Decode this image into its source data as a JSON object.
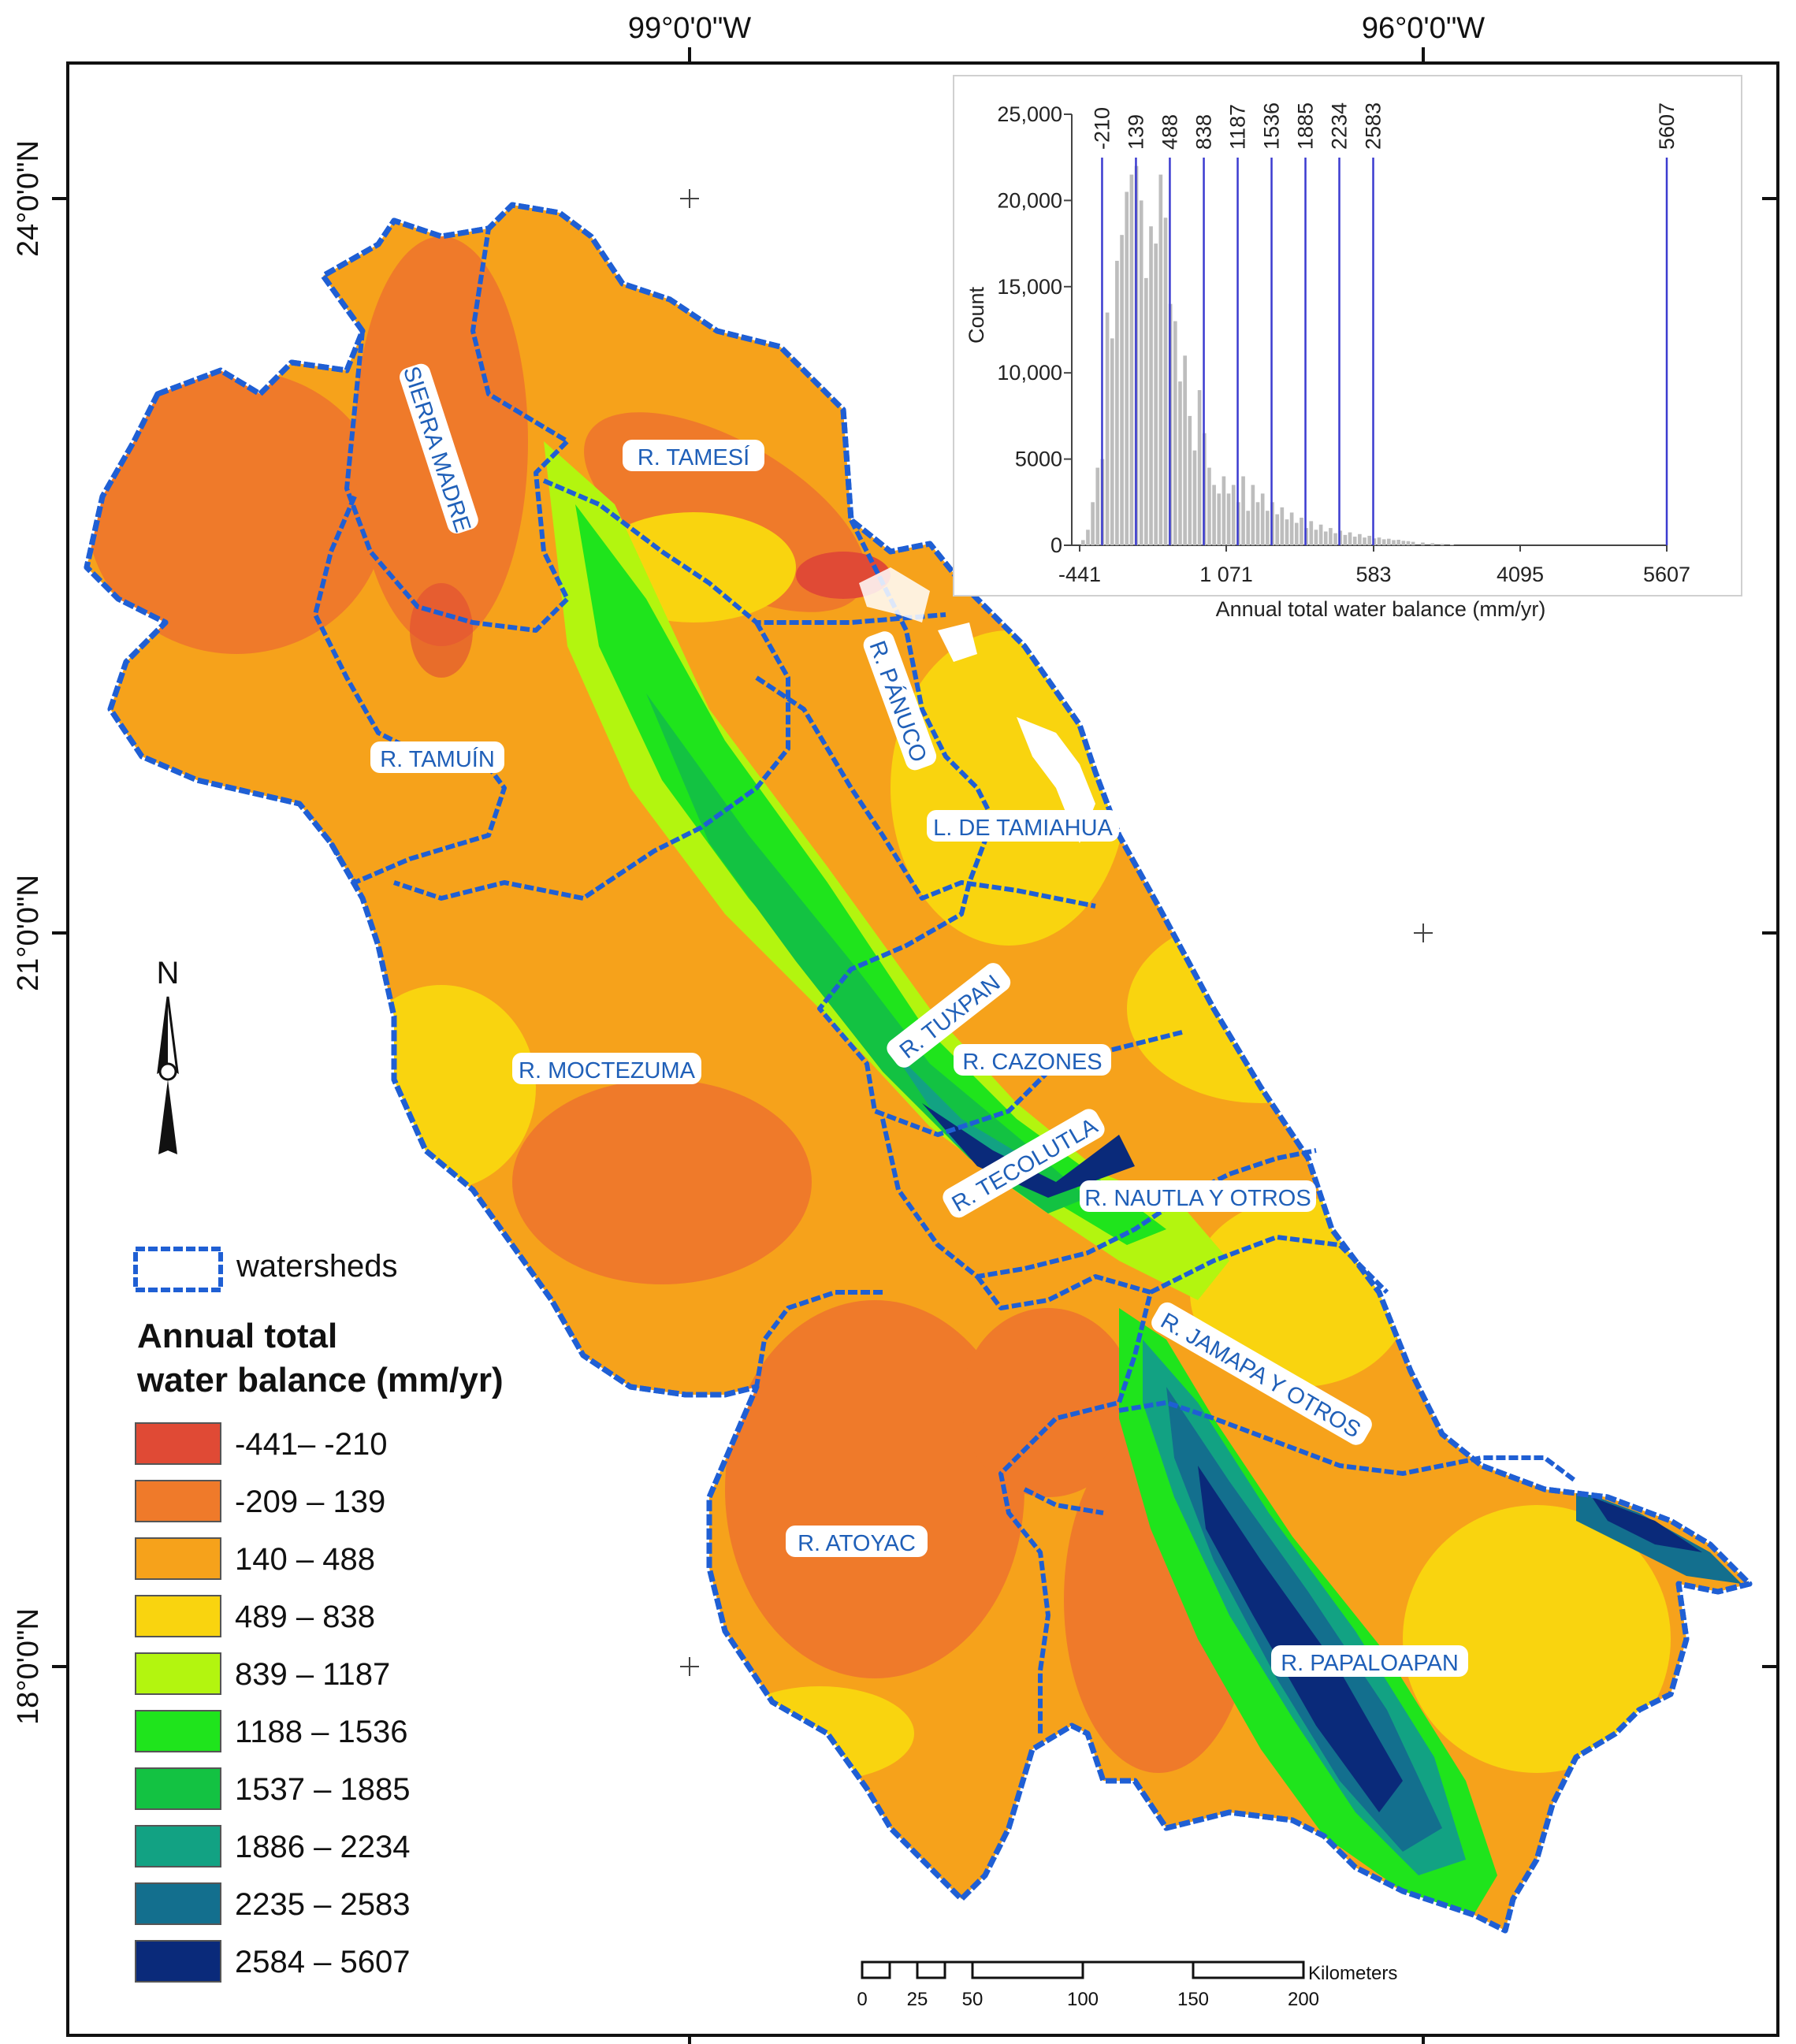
{
  "graticule": {
    "top": [
      "99°0'0\"W",
      "96°0'0\"W"
    ],
    "left": [
      "24°0'0\"N",
      "21°0'0\"N",
      "18°0'0\"N"
    ]
  },
  "watersheds": [
    "SIERRA MADRE",
    "R. TAMESÍ",
    "R. PÁNUCO",
    "R. TAMUÍN",
    "L. DE TAMIAHUA",
    "R. TUXPAN",
    "R. CAZONES",
    "R. MOCTEZUMA",
    "R. TECOLUTLA",
    "R. NAUTLA Y OTROS",
    "R. JAMAPA Y OTROS",
    "R. ATOYAC",
    "R. PAPALOAPAN"
  ],
  "north_label": "N",
  "legend": {
    "watersheds_label": "watersheds",
    "title_line1": "Annual total",
    "title_line2": "water balance (mm/yr)",
    "classes": [
      {
        "label": "-441– -210",
        "color": "#e04a35"
      },
      {
        "label": "-209 – 139",
        "color": "#ef7a2a"
      },
      {
        "label": "140 – 488",
        "color": "#f6a21b"
      },
      {
        "label": "489 – 838",
        "color": "#f9d40f"
      },
      {
        "label": "839 – 1187",
        "color": "#b3f50f"
      },
      {
        "label": "1188 – 1536",
        "color": "#1fe41c"
      },
      {
        "label": "1537 – 1885",
        "color": "#13c242"
      },
      {
        "label": "1886 – 2234",
        "color": "#12a283"
      },
      {
        "label": "2235 – 2583",
        "color": "#136f8e"
      },
      {
        "label": "2584 – 5607",
        "color": "#0a2a7a"
      }
    ]
  },
  "scalebar": {
    "ticks": [
      "0",
      "25",
      "50",
      "100",
      "150",
      "200"
    ],
    "unit": "Kilometers"
  },
  "chart_data": {
    "type": "bar",
    "title": "",
    "xlabel": "Annual total water balance (mm/yr)",
    "ylabel": "Count",
    "xlim": [
      -441,
      5607
    ],
    "ylim": [
      0,
      25000
    ],
    "x_tick_labels": [
      "-441",
      "1 071",
      "583",
      "4095",
      "5607"
    ],
    "y_ticks": [
      0,
      5000,
      10000,
      15000,
      20000,
      25000
    ],
    "y_tick_labels": [
      "0",
      "5000",
      "10,000",
      "15,000",
      "20,000",
      "25,000"
    ],
    "class_breaks": [
      -210,
      139,
      488,
      838,
      1187,
      1536,
      1885,
      2234,
      2583,
      5607
    ],
    "class_break_labels": [
      "-210",
      "139",
      "488",
      "838",
      "1187",
      "1536",
      "1885",
      "2234",
      "2583",
      "5607"
    ],
    "bins_x": [
      -400,
      -350,
      -300,
      -250,
      -200,
      -150,
      -100,
      -50,
      0,
      50,
      100,
      150,
      200,
      250,
      300,
      350,
      400,
      450,
      500,
      550,
      600,
      650,
      700,
      750,
      800,
      850,
      900,
      950,
      1000,
      1050,
      1100,
      1150,
      1200,
      1250,
      1300,
      1350,
      1400,
      1450,
      1500,
      1550,
      1600,
      1650,
      1700,
      1750,
      1800,
      1850,
      1900,
      1950,
      2000,
      2050,
      2100,
      2150,
      2200,
      2250,
      2300,
      2350,
      2400,
      2450,
      2500,
      2550,
      2600,
      2650,
      2700,
      2750,
      2800,
      2850,
      2900,
      2950,
      3000,
      3100,
      3200,
      3300,
      3400
    ],
    "counts": [
      300,
      900,
      2500,
      4500,
      5000,
      13500,
      12000,
      16500,
      18000,
      20500,
      21500,
      22000,
      20000,
      15500,
      18500,
      17500,
      21500,
      19000,
      14000,
      13000,
      9500,
      11000,
      7500,
      5500,
      9000,
      6500,
      4500,
      3500,
      3000,
      4000,
      3000,
      3500,
      2500,
      4000,
      2000,
      3500,
      2500,
      3000,
      2000,
      2500,
      1800,
      2200,
      1500,
      1900,
      1300,
      1600,
      1000,
      1400,
      900,
      1200,
      800,
      1000,
      700,
      850,
      600,
      750,
      500,
      650,
      450,
      550,
      400,
      450,
      350,
      380,
      300,
      320,
      260,
      240,
      200,
      160,
      120,
      80,
      50
    ]
  }
}
